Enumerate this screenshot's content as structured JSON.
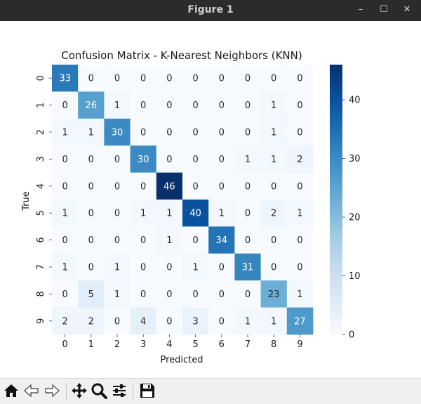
{
  "window": {
    "title": "Figure 1",
    "controls": {
      "minimize": "–",
      "maximize": "☐",
      "close": "✕"
    }
  },
  "toolbar": {
    "tools": [
      "home-icon",
      "back-icon",
      "forward-icon",
      "pan-icon",
      "zoom-icon",
      "configure-subplots-icon",
      "save-icon"
    ]
  },
  "chart_data": {
    "type": "heatmap",
    "title": "Confusion Matrix - K-Nearest Neighbors (KNN)",
    "xlabel": "Predicted",
    "ylabel": "True",
    "x_ticks": [
      "0",
      "1",
      "2",
      "3",
      "4",
      "5",
      "6",
      "7",
      "8",
      "9"
    ],
    "y_ticks": [
      "0",
      "1",
      "2",
      "3",
      "4",
      "5",
      "6",
      "7",
      "8",
      "9"
    ],
    "matrix": [
      [
        33,
        0,
        0,
        0,
        0,
        0,
        0,
        0,
        0,
        0
      ],
      [
        0,
        26,
        1,
        0,
        0,
        0,
        0,
        0,
        1,
        0
      ],
      [
        1,
        1,
        30,
        0,
        0,
        0,
        0,
        0,
        1,
        0
      ],
      [
        0,
        0,
        0,
        30,
        0,
        0,
        0,
        1,
        1,
        2
      ],
      [
        0,
        0,
        0,
        0,
        46,
        0,
        0,
        0,
        0,
        0
      ],
      [
        1,
        0,
        0,
        1,
        1,
        40,
        1,
        0,
        2,
        1
      ],
      [
        0,
        0,
        0,
        0,
        1,
        0,
        34,
        0,
        0,
        0
      ],
      [
        1,
        0,
        1,
        0,
        0,
        1,
        0,
        31,
        0,
        0
      ],
      [
        0,
        5,
        1,
        0,
        0,
        0,
        0,
        0,
        23,
        1
      ],
      [
        2,
        2,
        0,
        4,
        0,
        3,
        0,
        1,
        1,
        27
      ]
    ],
    "colormap": "Blues",
    "vmin": 0,
    "vmax": 46,
    "colorbar_ticks": [
      "0",
      "10",
      "20",
      "30",
      "40"
    ],
    "colorbar_values": [
      0,
      10,
      20,
      30,
      40
    ]
  }
}
